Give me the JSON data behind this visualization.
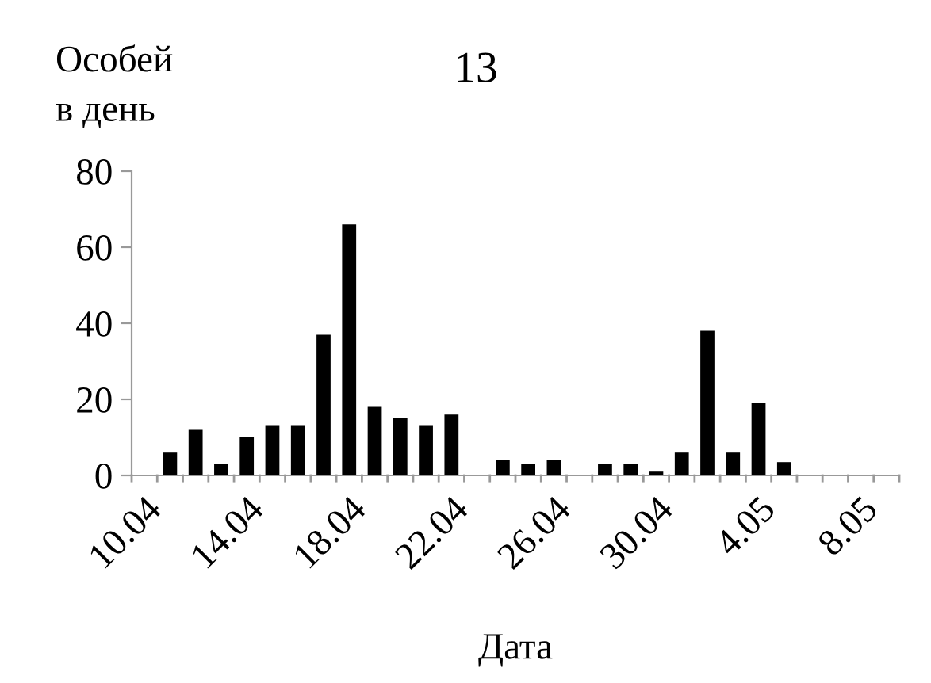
{
  "chart_data": {
    "type": "bar",
    "title": "13",
    "ylabel": "Особей\nв день",
    "xlabel": "Дата",
    "categories": [
      "10.04",
      null,
      null,
      null,
      "14.04",
      null,
      null,
      null,
      "18.04",
      null,
      null,
      null,
      "22.04",
      null,
      null,
      null,
      "26.04",
      null,
      null,
      null,
      "30.04",
      null,
      null,
      null,
      "4.05",
      null,
      null,
      null,
      "8.05",
      null
    ],
    "values": [
      0,
      6,
      12,
      3,
      10,
      13,
      13,
      37,
      66,
      18,
      15,
      13,
      16,
      0,
      4,
      3,
      4,
      0,
      3,
      3,
      1,
      6,
      38,
      6,
      19,
      3.5,
      0,
      0,
      0,
      0
    ],
    "color": "#000000",
    "ylim": [
      0,
      80
    ],
    "yticks": [
      0,
      20,
      40,
      60,
      80
    ],
    "grid": false
  }
}
